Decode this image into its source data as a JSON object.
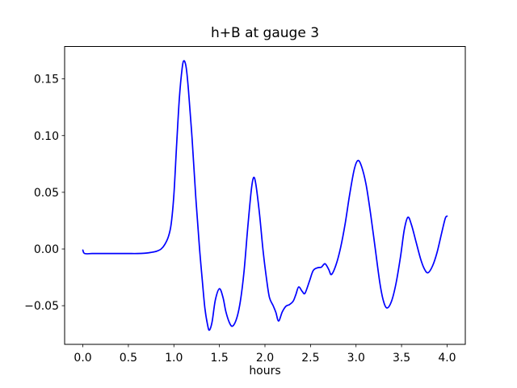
{
  "figure": {
    "background": "#ffffff",
    "axes_edge_color": "#000000"
  },
  "chart_data": {
    "type": "line",
    "title": "h+B at gauge 3",
    "xlabel": "hours",
    "ylabel": "",
    "grid": false,
    "legend": null,
    "xlim": [
      -0.2,
      4.2
    ],
    "ylim": [
      -0.0841,
      0.1786
    ],
    "xticks": [
      0.0,
      0.5,
      1.0,
      1.5,
      2.0,
      2.5,
      3.0,
      3.5,
      4.0
    ],
    "xtick_labels": [
      "0.0",
      "0.5",
      "1.0",
      "1.5",
      "2.0",
      "2.5",
      "3.0",
      "3.5",
      "4.0"
    ],
    "yticks": [
      0.15,
      0.1,
      0.05,
      0.0,
      -0.05
    ],
    "ytick_labels": [
      "0.15",
      "0.10",
      "0.05",
      "0.00",
      "−0.05"
    ],
    "series": [
      {
        "name": "h+B",
        "color": "#0000ff",
        "line_width": 1.7,
        "points": [
          [
            0.0,
            -0.001
          ],
          [
            0.02,
            -0.004
          ],
          [
            0.1,
            -0.004
          ],
          [
            0.2,
            -0.004
          ],
          [
            0.3,
            -0.004
          ],
          [
            0.4,
            -0.004
          ],
          [
            0.5,
            -0.004
          ],
          [
            0.6,
            -0.004
          ],
          [
            0.68,
            -0.0037
          ],
          [
            0.75,
            -0.003
          ],
          [
            0.81,
            -0.002
          ],
          [
            0.86,
            0.0
          ],
          [
            0.9,
            0.004
          ],
          [
            0.94,
            0.011
          ],
          [
            0.97,
            0.022
          ],
          [
            1.0,
            0.048
          ],
          [
            1.03,
            0.092
          ],
          [
            1.06,
            0.133
          ],
          [
            1.09,
            0.159
          ],
          [
            1.11,
            0.166
          ],
          [
            1.135,
            0.16
          ],
          [
            1.16,
            0.14
          ],
          [
            1.2,
            0.097
          ],
          [
            1.24,
            0.046
          ],
          [
            1.28,
            0.002
          ],
          [
            1.31,
            -0.026
          ],
          [
            1.34,
            -0.052
          ],
          [
            1.37,
            -0.067
          ],
          [
            1.39,
            -0.0715
          ],
          [
            1.42,
            -0.064
          ],
          [
            1.455,
            -0.045
          ],
          [
            1.5,
            -0.035
          ],
          [
            1.54,
            -0.043
          ],
          [
            1.57,
            -0.055
          ],
          [
            1.61,
            -0.065
          ],
          [
            1.645,
            -0.068
          ],
          [
            1.69,
            -0.061
          ],
          [
            1.73,
            -0.046
          ],
          [
            1.77,
            -0.02
          ],
          [
            1.81,
            0.018
          ],
          [
            1.85,
            0.052
          ],
          [
            1.875,
            0.063
          ],
          [
            1.9,
            0.057
          ],
          [
            1.94,
            0.031
          ],
          [
            1.98,
            -0.002
          ],
          [
            2.02,
            -0.028
          ],
          [
            2.05,
            -0.043
          ],
          [
            2.09,
            -0.05
          ],
          [
            2.12,
            -0.056
          ],
          [
            2.15,
            -0.0635
          ],
          [
            2.19,
            -0.0555
          ],
          [
            2.23,
            -0.0505
          ],
          [
            2.27,
            -0.049
          ],
          [
            2.31,
            -0.046
          ],
          [
            2.34,
            -0.04
          ],
          [
            2.37,
            -0.0335
          ],
          [
            2.41,
            -0.0375
          ],
          [
            2.44,
            -0.039
          ],
          [
            2.49,
            -0.028
          ],
          [
            2.53,
            -0.019
          ],
          [
            2.58,
            -0.0165
          ],
          [
            2.62,
            -0.016
          ],
          [
            2.66,
            -0.013
          ],
          [
            2.7,
            -0.018
          ],
          [
            2.73,
            -0.0225
          ],
          [
            2.78,
            -0.014
          ],
          [
            2.83,
            0.001
          ],
          [
            2.88,
            0.022
          ],
          [
            2.93,
            0.048
          ],
          [
            2.98,
            0.07
          ],
          [
            3.02,
            0.078
          ],
          [
            3.06,
            0.073
          ],
          [
            3.11,
            0.057
          ],
          [
            3.16,
            0.031
          ],
          [
            3.21,
            0.001
          ],
          [
            3.26,
            -0.029
          ],
          [
            3.3,
            -0.0455
          ],
          [
            3.34,
            -0.052
          ],
          [
            3.39,
            -0.046
          ],
          [
            3.44,
            -0.03
          ],
          [
            3.49,
            -0.006
          ],
          [
            3.53,
            0.017
          ],
          [
            3.57,
            0.028
          ],
          [
            3.61,
            0.021
          ],
          [
            3.66,
            0.006
          ],
          [
            3.71,
            -0.009
          ],
          [
            3.75,
            -0.0175
          ],
          [
            3.79,
            -0.021
          ],
          [
            3.84,
            -0.015
          ],
          [
            3.89,
            -0.003
          ],
          [
            3.94,
            0.014
          ],
          [
            3.98,
            0.027
          ],
          [
            4.0,
            0.029
          ]
        ]
      }
    ]
  }
}
